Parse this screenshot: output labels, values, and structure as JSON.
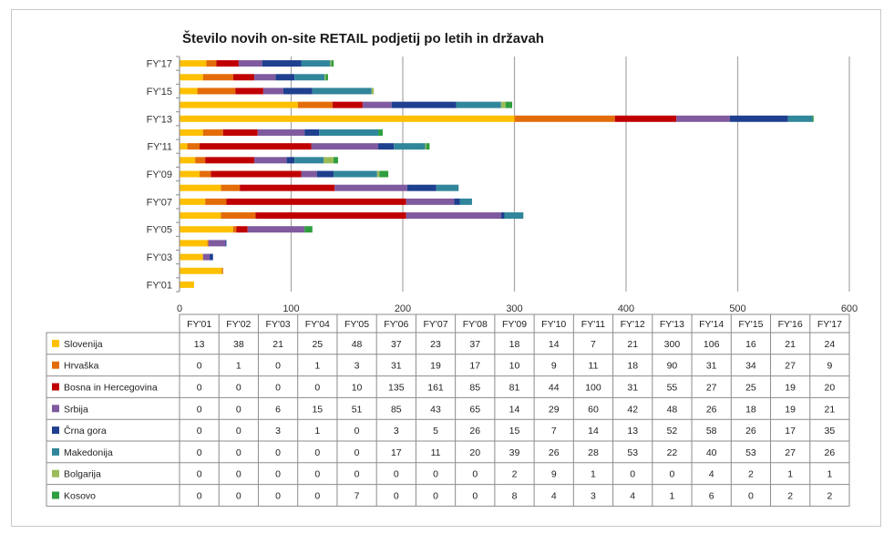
{
  "chart_data": {
    "type": "bar",
    "orientation": "horizontal",
    "stacked": true,
    "title": "Število novih  on-site RETAIL podjetij po letih in državah",
    "categories": [
      "FY'01",
      "FY'02",
      "FY'03",
      "FY'04",
      "FY'05",
      "FY'06",
      "FY'07",
      "FY'08",
      "FY'09",
      "FY'10",
      "FY'11",
      "FY'12",
      "FY'13",
      "FY'14",
      "FY'15",
      "FY'16",
      "FY'17"
    ],
    "category_axis_labels": [
      "FY'01",
      "FY'03",
      "FY'05",
      "FY'07",
      "FY'09",
      "FY'11",
      "FY'13",
      "FY'15",
      "FY'17"
    ],
    "xlim": [
      0,
      600
    ],
    "xticks": [
      "0",
      "100",
      "200",
      "300",
      "400",
      "500",
      "600"
    ],
    "grid": true,
    "legend_position": "data-table",
    "series": [
      {
        "name": "Slovenija",
        "color": "#FFC000",
        "values": [
          13,
          38,
          21,
          25,
          48,
          37,
          23,
          37,
          18,
          14,
          7,
          21,
          300,
          106,
          16,
          21,
          24
        ]
      },
      {
        "name": "Hrvaška",
        "color": "#E36C09",
        "values": [
          0,
          1,
          0,
          1,
          3,
          31,
          19,
          17,
          10,
          9,
          11,
          18,
          90,
          31,
          34,
          27,
          9
        ]
      },
      {
        "name": "Bosna in Hercegovina",
        "color": "#C00000",
        "values": [
          0,
          0,
          0,
          0,
          10,
          135,
          161,
          85,
          81,
          44,
          100,
          31,
          55,
          27,
          25,
          19,
          20
        ]
      },
      {
        "name": "Srbija",
        "color": "#7F5A9E",
        "values": [
          0,
          0,
          6,
          15,
          51,
          85,
          43,
          65,
          14,
          29,
          60,
          42,
          48,
          26,
          18,
          19,
          21
        ]
      },
      {
        "name": "Črna gora",
        "color": "#1F3F8F",
        "values": [
          0,
          0,
          3,
          1,
          0,
          3,
          5,
          26,
          15,
          7,
          14,
          13,
          52,
          58,
          26,
          17,
          35
        ]
      },
      {
        "name": "Makedonija",
        "color": "#31869B",
        "values": [
          0,
          0,
          0,
          0,
          0,
          17,
          11,
          20,
          39,
          26,
          28,
          53,
          22,
          40,
          53,
          27,
          26
        ]
      },
      {
        "name": "Bolgarija",
        "color": "#9BBB59",
        "values": [
          0,
          0,
          0,
          0,
          0,
          0,
          0,
          0,
          2,
          9,
          1,
          0,
          0,
          4,
          2,
          1,
          1
        ]
      },
      {
        "name": "Kosovo",
        "color": "#2E9E3F",
        "values": [
          0,
          0,
          0,
          0,
          7,
          0,
          0,
          0,
          8,
          4,
          3,
          4,
          1,
          6,
          0,
          2,
          2
        ]
      }
    ]
  }
}
